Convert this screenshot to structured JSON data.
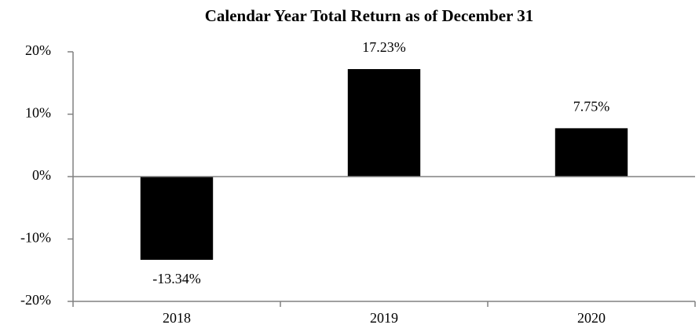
{
  "chart_data": {
    "type": "bar",
    "title": "Calendar Year Total Return as of December 31",
    "categories": [
      "2018",
      "2019",
      "2020"
    ],
    "values": [
      -13.34,
      17.23,
      7.75
    ],
    "value_labels": [
      "-13.34%",
      "17.23%",
      "7.75%"
    ],
    "color": "#000000",
    "ylim": [
      -20,
      20
    ],
    "yticks": [
      {
        "value": -20,
        "label": "-20%"
      },
      {
        "value": -10,
        "label": "-10%"
      },
      {
        "value": 0,
        "label": "0%"
      },
      {
        "value": 10,
        "label": "10%"
      },
      {
        "value": 20,
        "label": "20%"
      }
    ],
    "grid": false
  }
}
